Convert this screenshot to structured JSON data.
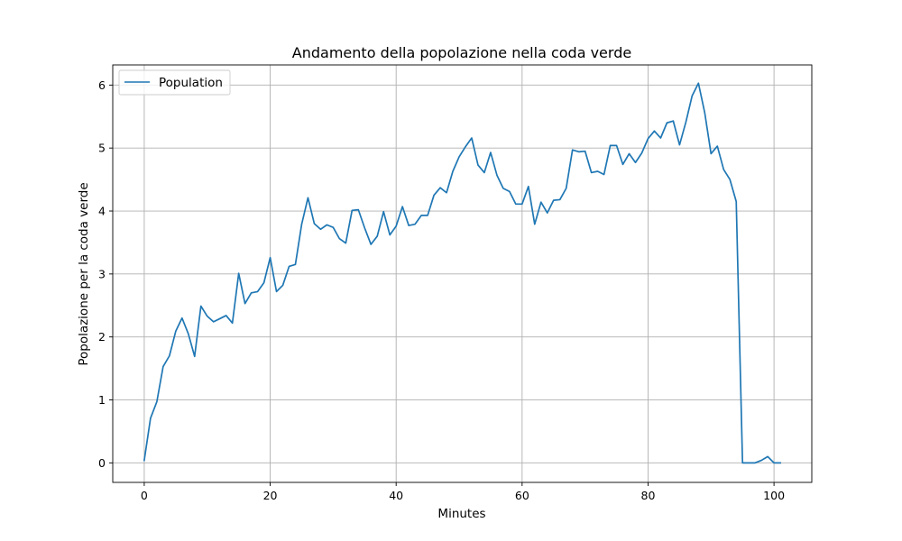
{
  "chart_data": {
    "type": "line",
    "title": "Andamento della popolazione nella coda verde",
    "xlabel": "Minutes",
    "ylabel": "Popolazione per la coda verde",
    "xlim": [
      -5,
      106
    ],
    "ylim": [
      -0.31,
      6.32
    ],
    "xticks": [
      0,
      20,
      40,
      60,
      80,
      100
    ],
    "yticks": [
      0,
      1,
      2,
      3,
      4,
      5,
      6
    ],
    "grid": true,
    "legend_position": "upper-left",
    "colors": {
      "line": "#1f77b4",
      "grid": "#b0b0b0",
      "axes": "#000000"
    },
    "series": [
      {
        "name": "Population",
        "x": [
          0,
          1,
          2,
          3,
          4,
          5,
          6,
          7,
          8,
          9,
          10,
          11,
          12,
          13,
          14,
          15,
          16,
          17,
          18,
          19,
          20,
          21,
          22,
          23,
          24,
          25,
          26,
          27,
          28,
          29,
          30,
          31,
          32,
          33,
          34,
          35,
          36,
          37,
          38,
          39,
          40,
          41,
          42,
          43,
          44,
          45,
          46,
          47,
          48,
          49,
          50,
          51,
          52,
          53,
          54,
          55,
          56,
          57,
          58,
          59,
          60,
          61,
          62,
          63,
          64,
          65,
          66,
          67,
          68,
          69,
          70,
          71,
          72,
          73,
          74,
          75,
          76,
          77,
          78,
          79,
          80,
          81,
          82,
          83,
          84,
          85,
          86,
          87,
          88,
          89,
          90,
          91,
          92,
          93,
          94,
          95,
          96,
          97,
          98,
          99,
          100,
          101
        ],
        "y": [
          0.04,
          0.71,
          0.97,
          1.53,
          1.7,
          2.09,
          2.3,
          2.05,
          1.69,
          2.49,
          2.33,
          2.24,
          2.29,
          2.34,
          2.22,
          3.01,
          2.53,
          2.7,
          2.72,
          2.86,
          3.26,
          2.72,
          2.82,
          3.12,
          3.15,
          3.79,
          4.21,
          3.8,
          3.71,
          3.78,
          3.74,
          3.56,
          3.49,
          4.01,
          4.02,
          3.73,
          3.47,
          3.6,
          3.99,
          3.62,
          3.76,
          4.07,
          3.77,
          3.79,
          3.93,
          3.93,
          4.25,
          4.37,
          4.29,
          4.63,
          4.86,
          5.02,
          5.16,
          4.73,
          4.61,
          4.93,
          4.57,
          4.36,
          4.31,
          4.11,
          4.11,
          4.39,
          3.79,
          4.14,
          3.97,
          4.17,
          4.18,
          4.36,
          4.97,
          4.94,
          4.95,
          4.61,
          4.63,
          4.58,
          5.04,
          5.04,
          4.74,
          4.91,
          4.77,
          4.92,
          5.15,
          5.27,
          5.16,
          5.4,
          5.43,
          5.05,
          5.41,
          5.83,
          6.03,
          5.56,
          4.91,
          5.03,
          4.66,
          4.5,
          4.15,
          0.0,
          0.0,
          0.0,
          0.04,
          0.1,
          0.0,
          0.0
        ]
      }
    ]
  }
}
